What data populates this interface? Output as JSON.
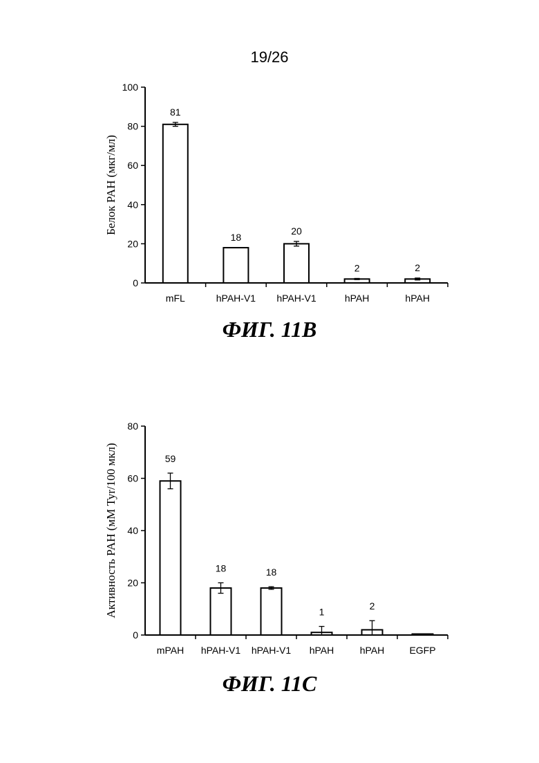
{
  "page_number": "19/26",
  "chart_data": [
    {
      "type": "bar",
      "figure_label": "ФИГ. 11B",
      "ylabel": "Белок PAH (мкг/мл)",
      "xlabel": "",
      "ylim": [
        0,
        100
      ],
      "yticks": [
        0,
        20,
        40,
        60,
        80,
        100
      ],
      "categories": [
        "mFL",
        "hPAH-V1",
        "hPAH-V1",
        "hPAH",
        "hPAH"
      ],
      "values": [
        81,
        18,
        20,
        2,
        2
      ],
      "value_labels": [
        "81",
        "18",
        "20",
        "2",
        "2"
      ],
      "errors": [
        1,
        0,
        1.2,
        0.3,
        0.5
      ]
    },
    {
      "type": "bar",
      "figure_label": "ФИГ. 11C",
      "ylabel": "Активность PAH (мМ Tyr/100 мкл)",
      "xlabel": "",
      "ylim": [
        0,
        80
      ],
      "yticks": [
        0,
        20,
        40,
        60,
        80
      ],
      "categories": [
        "mPAH",
        "hPAH-V1",
        "hPAH-V1",
        "hPAH",
        "hPAH",
        "EGFP"
      ],
      "values": [
        59,
        18,
        18,
        1,
        2,
        0
      ],
      "value_labels": [
        "59",
        "18",
        "18",
        "1",
        "2",
        ""
      ],
      "errors": [
        3,
        2,
        0.5,
        2.3,
        3.5,
        0.3
      ]
    }
  ]
}
